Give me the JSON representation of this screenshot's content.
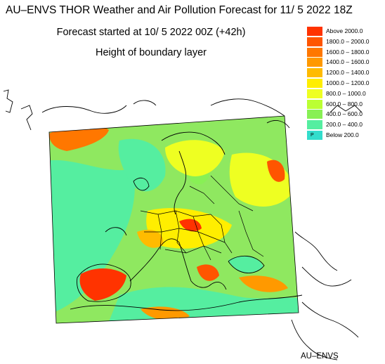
{
  "header": {
    "title": "AU–ENVS THOR Weather and Air Pollution Forecast for 11/ 5 2022  18Z",
    "forecast_started": "Forecast started at 10/ 5 2022  00Z (+42h)",
    "parameter": "Height of boundary layer"
  },
  "legend": {
    "items": [
      {
        "label": "Above    2000.0",
        "color": "#ff3300"
      },
      {
        "label": "1800.0 – 2000.0",
        "color": "#ff5500"
      },
      {
        "label": "1600.0 – 1800.0",
        "color": "#ff7700"
      },
      {
        "label": "1400.0 – 1600.0",
        "color": "#ff9900"
      },
      {
        "label": "1200.0 – 1400.0",
        "color": "#ffbb00"
      },
      {
        "label": "1000.0 – 1200.0",
        "color": "#ffee00"
      },
      {
        "label": "800.0 – 1000.0",
        "color": "#eeff22"
      },
      {
        "label": "600.0 – 800.0",
        "color": "#bbff33"
      },
      {
        "label": "400.0 – 600.0",
        "color": "#88f055"
      },
      {
        "label": "200.0 – 400.0",
        "color": "#55eea0"
      },
      {
        "label": "Below    200.0",
        "color": "#33ddcc",
        "marker": "P"
      }
    ]
  },
  "credit": "AU–ENVS"
}
